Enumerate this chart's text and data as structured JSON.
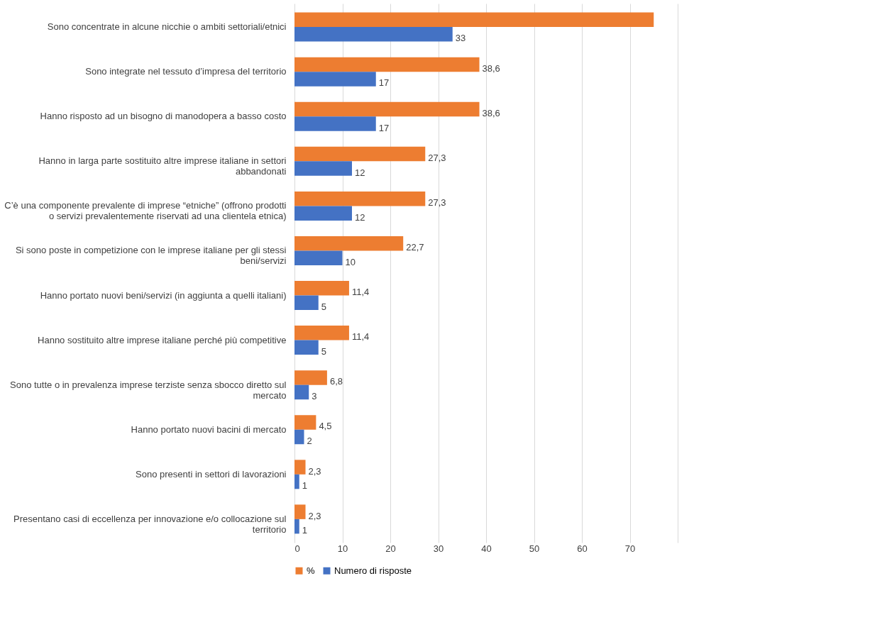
{
  "chart_data": {
    "type": "bar",
    "orientation": "horizontal",
    "categories": [
      "Sono concentrate in alcune nicchie o ambiti settoriali/etnici",
      "Sono integrate nel tessuto d’impresa del territorio",
      "Hanno risposto ad un bisogno di manodopera a basso costo",
      "Hanno in larga parte sostituito altre imprese italiane in settori abbandonati",
      "C’è una componente prevalente di imprese “etniche” (offrono prodotti o servizi prevalentemente riservati ad una clientela etnica)",
      "Si sono poste in competizione con le imprese italiane per gli stessi beni/servizi",
      "Hanno portato nuovi beni/servizi (in aggiunta a quelli italiani)",
      "Hanno sostituito altre imprese italiane perché più competitive",
      "Sono tutte o in prevalenza imprese terziste senza sbocco diretto sul mercato",
      "Hanno portato nuovi bacini di mercato",
      "Sono presenti in settori di lavorazioni",
      "Presentano casi di eccellenza per innovazione e/o collocazione sul territorio"
    ],
    "series": [
      {
        "name": "%",
        "color": "#ed7d31",
        "values": [
          75,
          38.6,
          38.6,
          27.3,
          27.3,
          22.7,
          11.4,
          11.4,
          6.8,
          4.5,
          2.3,
          2.3
        ],
        "value_labels": [
          null,
          "38,6",
          "38,6",
          "27,3",
          "27,3",
          "22,7",
          "11,4",
          "11,4",
          "6,8",
          "4,5",
          "2,3",
          "2,3"
        ]
      },
      {
        "name": "Numero di risposte",
        "color": "#4472c4",
        "values": [
          33,
          17,
          17,
          12,
          12,
          10,
          5,
          5,
          3,
          2,
          1,
          1
        ],
        "value_labels": [
          "33",
          "17",
          "17",
          "12",
          "12",
          "10",
          "5",
          "5",
          "3",
          "2",
          "1",
          "1"
        ]
      }
    ],
    "xlim": [
      0,
      80
    ],
    "xticks": [
      0,
      10,
      20,
      30,
      40,
      50,
      60,
      70,
      {
        "value": 80,
        "label": null
      }
    ],
    "grid": "x",
    "legend": "bottom"
  }
}
